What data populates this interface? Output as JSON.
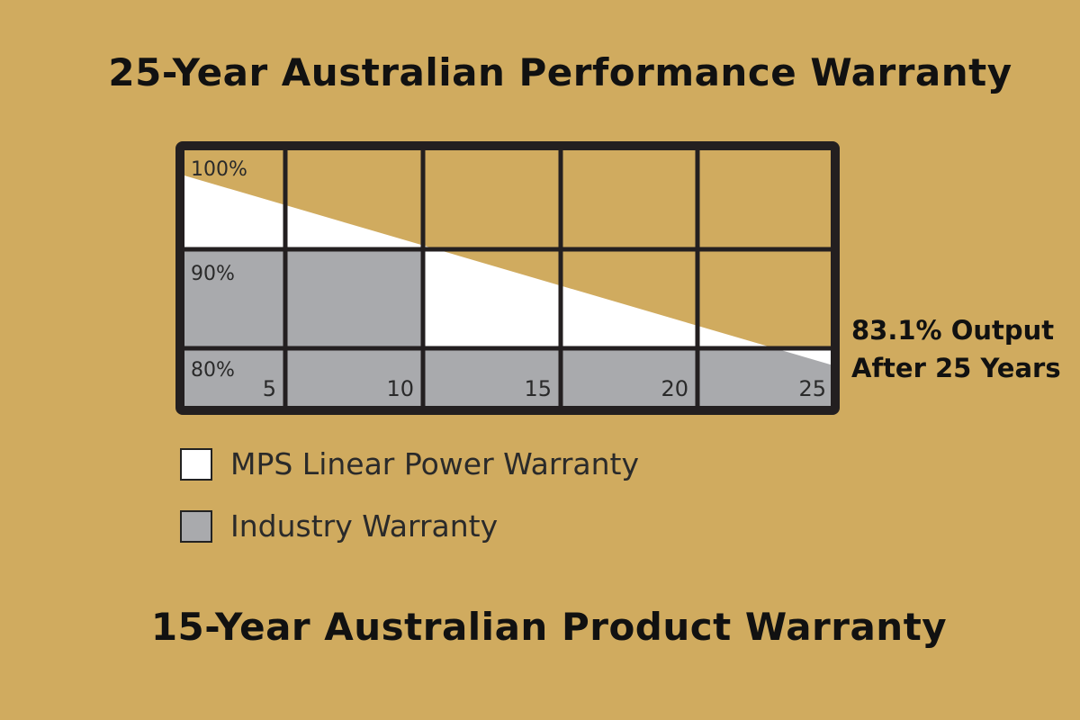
{
  "titles": {
    "top": "25-Year Australian Performance Warranty",
    "bottom": "15-Year Australian Product Warranty"
  },
  "annotation": {
    "line1": "83.1% Output",
    "line2": "After 25 Years"
  },
  "colors": {
    "background": "#d0ab5f",
    "mps": "#ffffff",
    "industry": "#a9aaad",
    "grid": "#231f20"
  },
  "chart_data": {
    "type": "area",
    "x_ticks": [
      "5",
      "10",
      "15",
      "20",
      "25"
    ],
    "y_ticks": [
      "100%",
      "90%",
      "80%"
    ],
    "series": [
      {
        "name": "MPS Linear Power Warranty",
        "x": [
          0,
          25
        ],
        "y": [
          98,
          83.1
        ]
      },
      {
        "name": "Industry Warranty",
        "x": [
          0,
          10,
          10,
          25
        ],
        "y": [
          90,
          90,
          80,
          80
        ]
      }
    ],
    "xlim": [
      0,
      25
    ],
    "ylim": [
      80,
      100
    ],
    "grid": true,
    "legend": "below"
  }
}
